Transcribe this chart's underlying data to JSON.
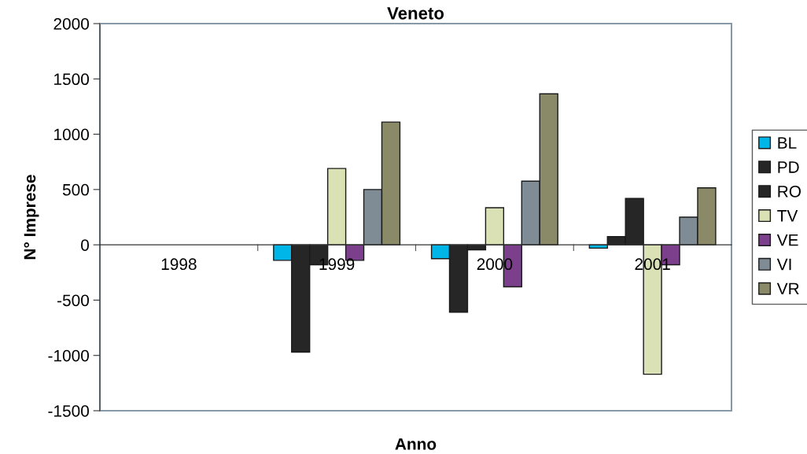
{
  "chart_data": {
    "type": "bar",
    "title": "Veneto",
    "xlabel": "Anno",
    "ylabel": "N° Imprese",
    "categories": [
      "1998",
      "1999",
      "2000",
      "2001"
    ],
    "series": [
      {
        "name": "BL",
        "color": "#00b5e8",
        "values": [
          null,
          -140,
          -125,
          -30
        ]
      },
      {
        "name": "PD",
        "color": "#262626",
        "values": [
          null,
          -970,
          -610,
          75
        ]
      },
      {
        "name": "RO",
        "color": "#262626",
        "values": [
          null,
          -180,
          -45,
          420
        ]
      },
      {
        "name": "TV",
        "color": "#d9e1b5",
        "values": [
          null,
          690,
          335,
          -1170
        ]
      },
      {
        "name": "VE",
        "color": "#7b3f8c",
        "values": [
          null,
          -140,
          -380,
          -180
        ]
      },
      {
        "name": "VI",
        "color": "#7f8c96",
        "values": [
          null,
          500,
          575,
          250
        ]
      },
      {
        "name": "VR",
        "color": "#8a8a69",
        "values": [
          null,
          1110,
          1365,
          515
        ]
      }
    ],
    "ylim": [
      -1500,
      2000
    ],
    "yticks": [
      -1500,
      -1000,
      -500,
      0,
      500,
      1000,
      1500,
      2000
    ],
    "grid": false,
    "legend": "right"
  }
}
